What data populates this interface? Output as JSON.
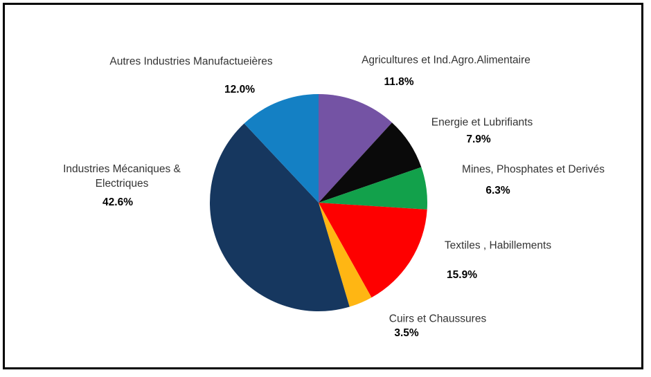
{
  "chart_data": {
    "type": "pie",
    "title": "",
    "start_angle_deg": 0,
    "direction": "clockwise",
    "categories": [
      "Agricultures et Ind.Agro.Alimentaire",
      "Energie et Lubrifiants",
      "Mines, Phosphates et Derivés",
      "Textiles , Habillements",
      "Cuirs et Chaussures",
      "Industries Mécaniques & Electriques",
      "Autres Industries Manufactueières"
    ],
    "values": [
      11.8,
      7.9,
      6.3,
      15.9,
      3.5,
      42.6,
      12.0
    ],
    "percent_labels": [
      "11.8%",
      "7.9%",
      "6.3%",
      "15.9%",
      "3.5%",
      "42.6%",
      "12.0%"
    ],
    "colors": [
      "#7453A4",
      "#0A0A0A",
      "#12A14B",
      "#FE0000",
      "#FFB613",
      "#16375F",
      "#1480C4"
    ],
    "slice_slugs": [
      "agricultures",
      "energie",
      "mines",
      "textiles",
      "cuirs",
      "industries-mecaniques",
      "autres-industries"
    ],
    "legend_position": "outside-labels",
    "grid": false
  },
  "frame": {
    "border_color": "#000000",
    "background_color": "#ffffff"
  },
  "labels": {
    "autres": {
      "text": "Autres Industries Manufactueières",
      "pct": "12.0%"
    },
    "agricultures": {
      "text": "Agricultures et Ind.Agro.Alimentaire",
      "pct": "11.8%"
    },
    "energie": {
      "text": "Energie et Lubrifiants",
      "pct": "7.9%"
    },
    "mines": {
      "text": "Mines, Phosphates et Derivés",
      "pct": "6.3%"
    },
    "textiles": {
      "text": "Textiles , Habillements",
      "pct": "15.9%"
    },
    "cuirs": {
      "text": "Cuirs et Chaussures",
      "pct": "3.5%"
    },
    "industries": {
      "text": "Industries Mécaniques & Electriques",
      "pct": "42.6%"
    }
  }
}
